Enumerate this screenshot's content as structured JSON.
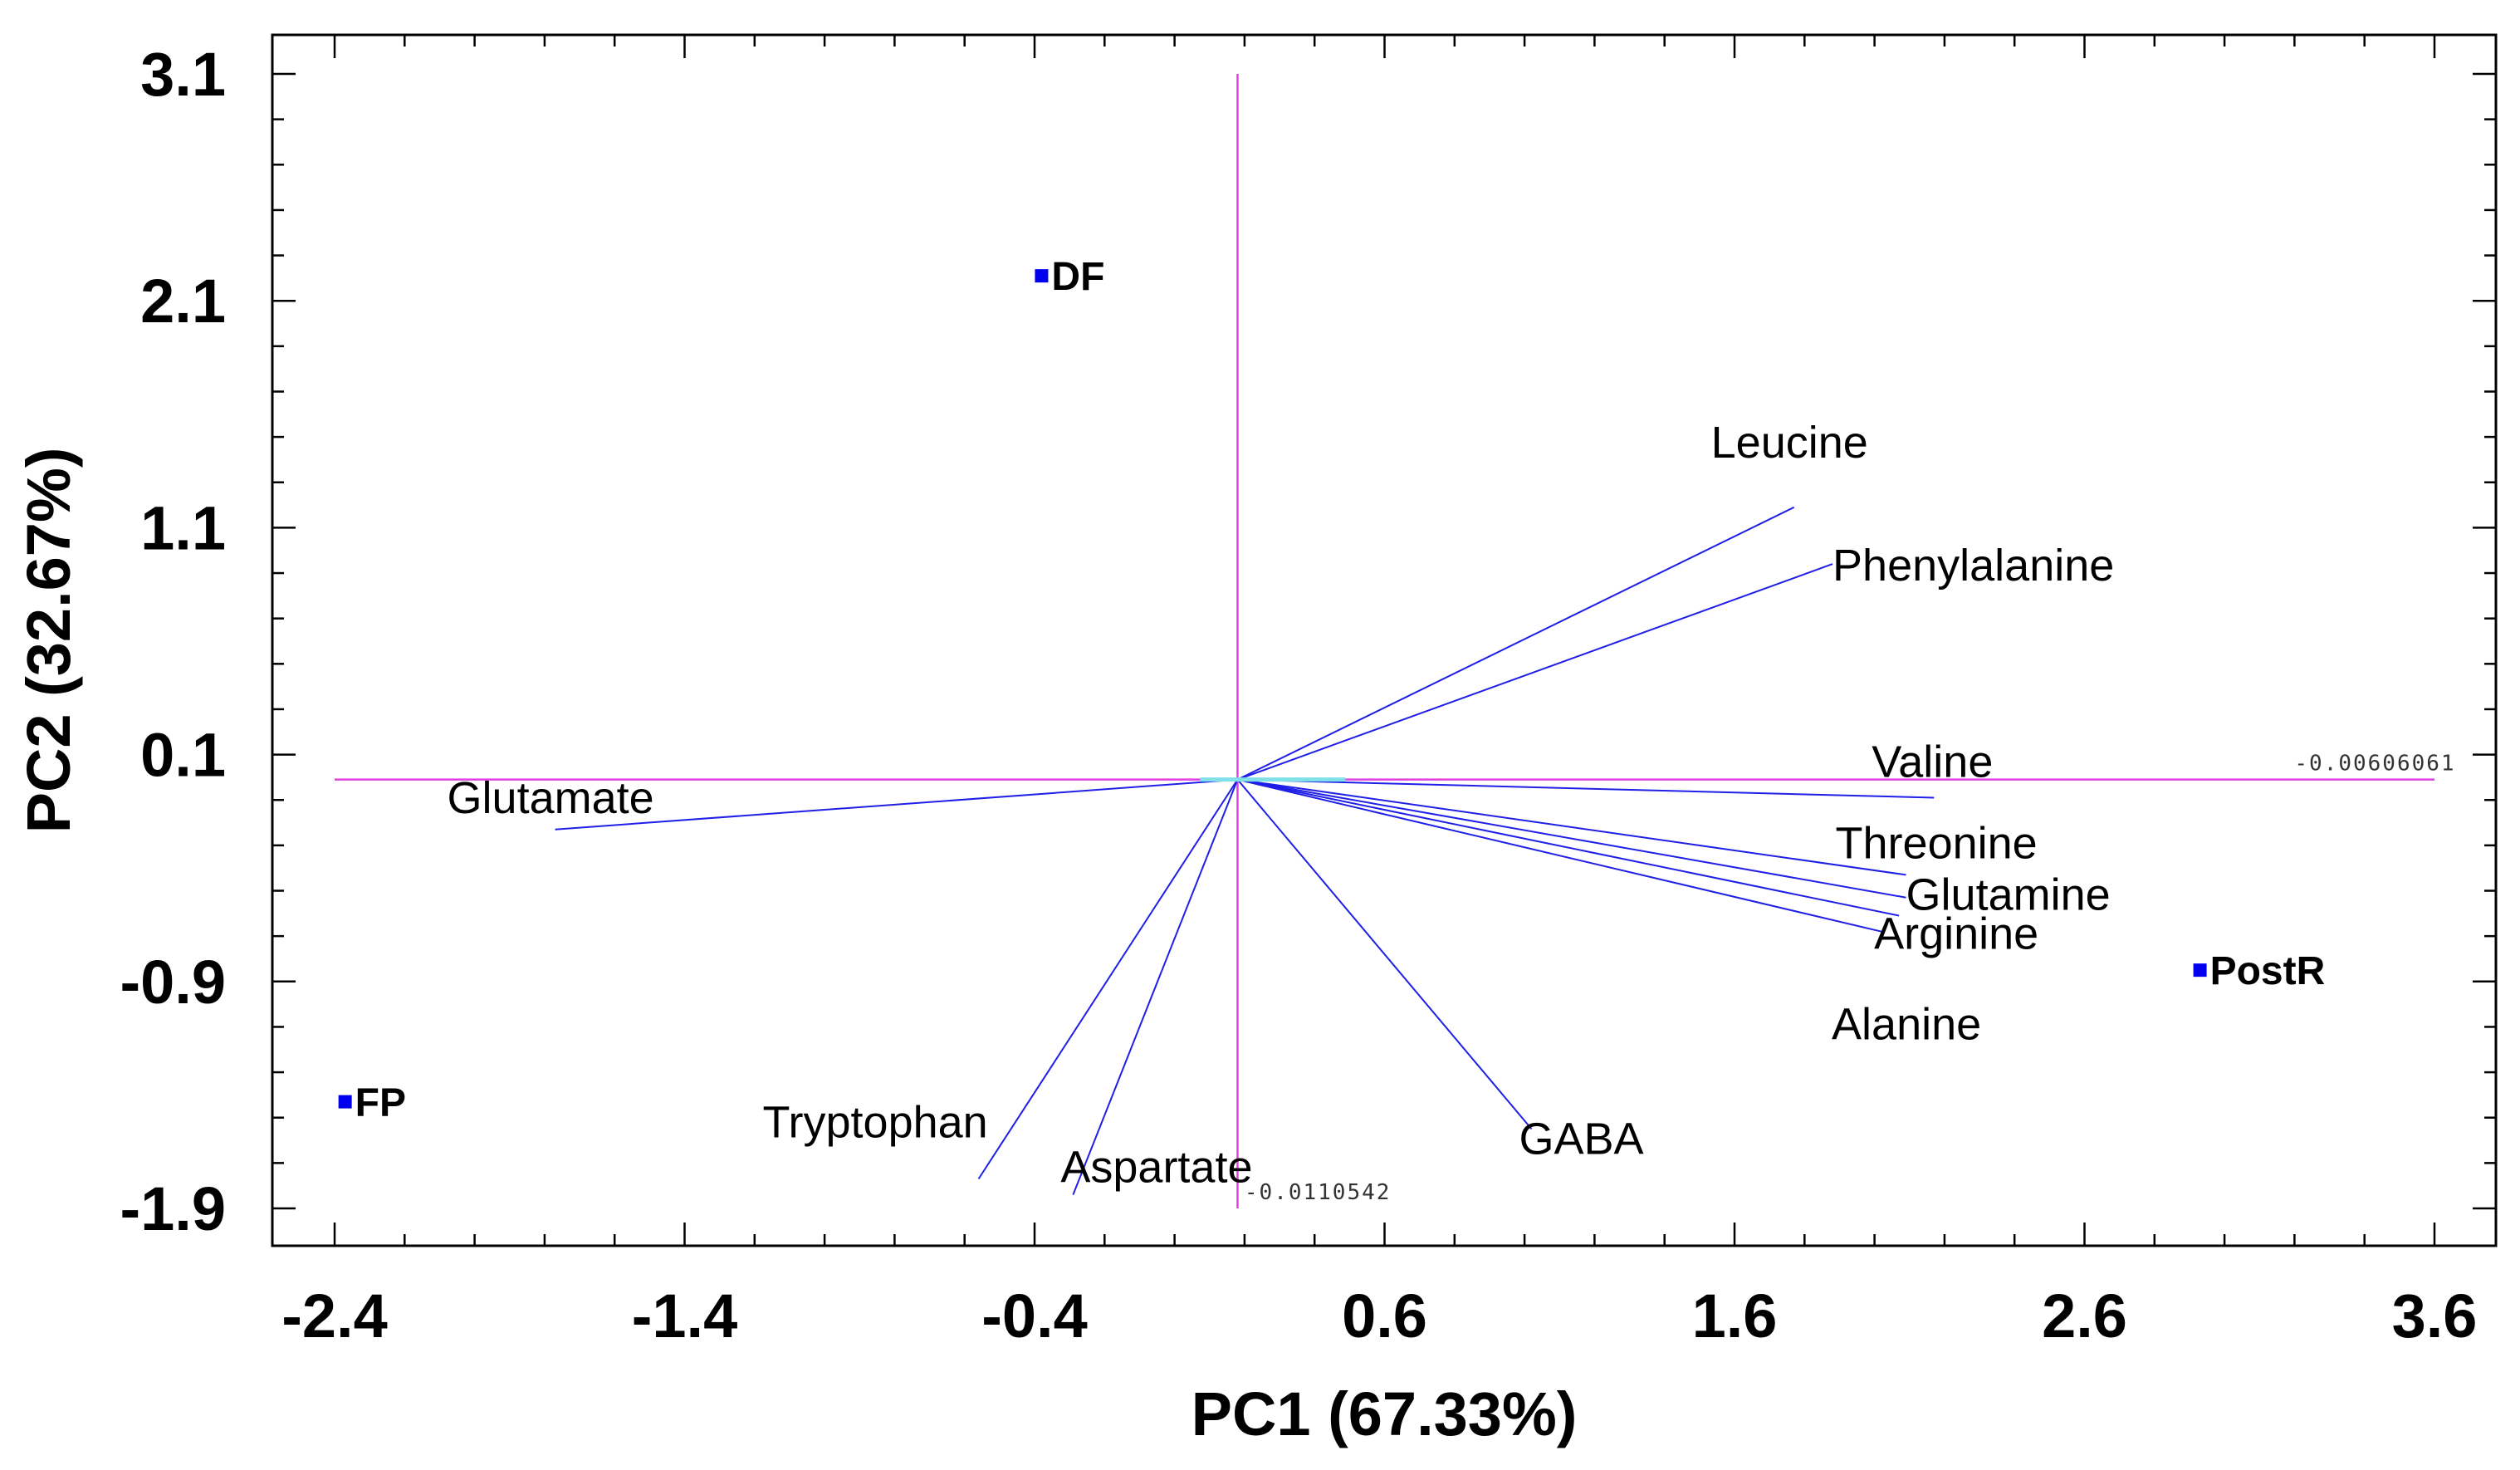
{
  "chart_data": {
    "type": "scatter",
    "subtype": "pca-biplot",
    "title": "",
    "xlabel": "PC1 (67.33%)",
    "ylabel": "PC2 (32.67%)",
    "xlim": [
      -2.4,
      3.6
    ],
    "ylim": [
      -1.9,
      3.1
    ],
    "xticks": [
      -2.4,
      -1.4,
      -0.4,
      0.6,
      1.6,
      2.6,
      3.6
    ],
    "xtick_labels": [
      "-2.4",
      "-1.4",
      "-0.4",
      "0.6",
      "1.6",
      "2.6",
      "3.6"
    ],
    "yticks": [
      -1.9,
      -0.9,
      0.1,
      1.1,
      2.1,
      3.1
    ],
    "ytick_labels": [
      "-1.9",
      "-0.9",
      "0.1",
      "1.1",
      "2.1",
      "3.1"
    ],
    "origin": {
      "x": 0.18,
      "y": -0.01
    },
    "samples": [
      {
        "name": "DF",
        "x": -0.38,
        "y": 2.21
      },
      {
        "name": "FP",
        "x": -2.37,
        "y": -1.43
      },
      {
        "name": "PostR",
        "x": 2.93,
        "y": -0.85
      }
    ],
    "loadings": [
      {
        "name": "Leucine",
        "x": 1.77,
        "y": 1.19
      },
      {
        "name": "Phenylalanine",
        "x": 1.88,
        "y": 0.94
      },
      {
        "name": "Valine",
        "x": 2.17,
        "y": -0.09
      },
      {
        "name": "Threonine",
        "x": 2.09,
        "y": -0.43
      },
      {
        "name": "Glutamine",
        "x": 2.09,
        "y": -0.53
      },
      {
        "name": "Arginine",
        "x": 2.07,
        "y": -0.61
      },
      {
        "name": "Alanine",
        "x": 2.02,
        "y": -0.68
      },
      {
        "name": "Glutamate",
        "x": -1.77,
        "y": -0.23
      },
      {
        "name": "Tryptophan",
        "x": -0.56,
        "y": -1.77
      },
      {
        "name": "Aspartate",
        "x": -0.29,
        "y": -1.84
      },
      {
        "name": "GABA",
        "x": 1.02,
        "y": -1.55
      }
    ],
    "annotations": [
      {
        "text": "-0.00606061",
        "x": 3.2,
        "y": 0.03
      },
      {
        "text": "-0.0110542",
        "x": 0.2,
        "y": -1.86
      }
    ],
    "colors": {
      "axis_lines": "#e040e0",
      "loadings": "#1f1fe8",
      "samples": "#0000ee",
      "frame": "#000000",
      "origin_marker": "#7fe0e8"
    }
  }
}
